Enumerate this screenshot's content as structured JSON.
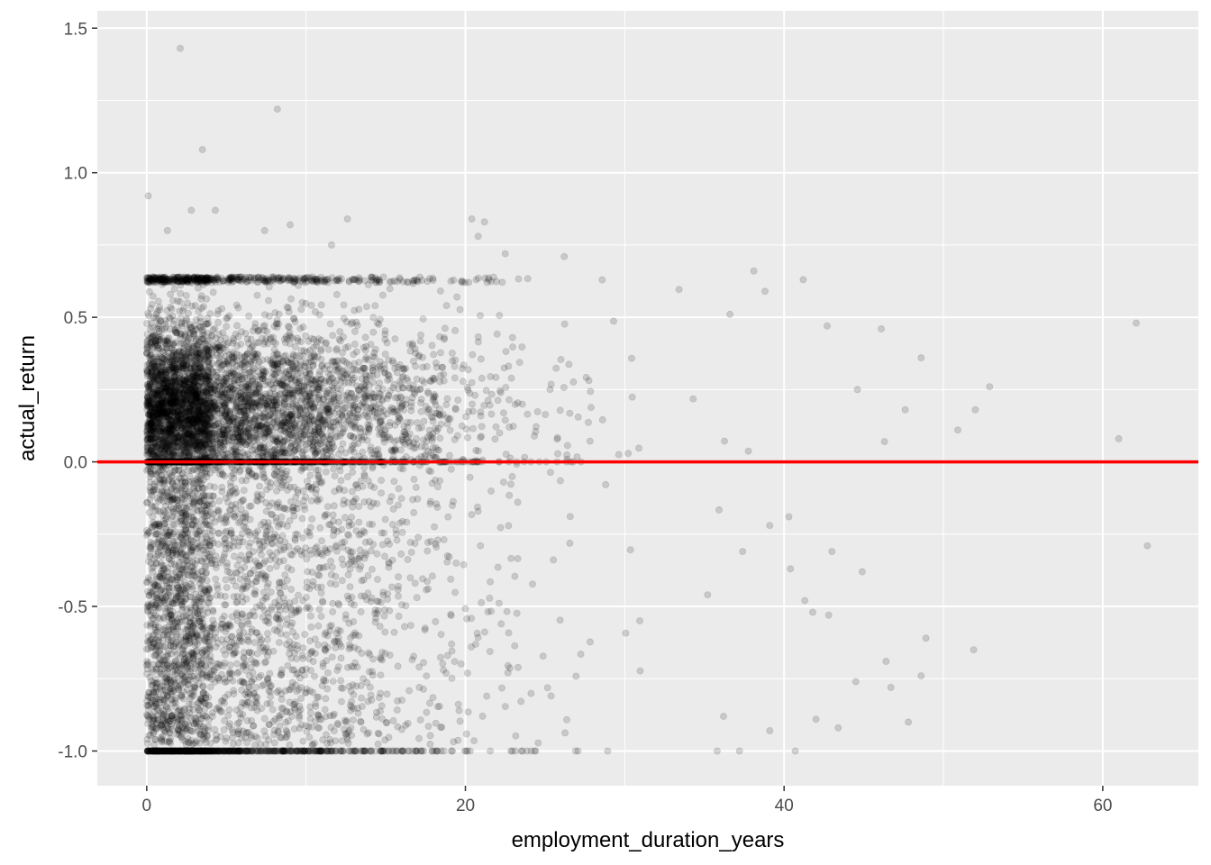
{
  "chart_data": {
    "type": "scatter",
    "title": "",
    "xlabel": "employment_duration_years",
    "ylabel": "actual_return",
    "xlim": [
      -3.1,
      66.0
    ],
    "ylim": [
      -1.12,
      1.56
    ],
    "x_ticks": [
      0,
      20,
      40,
      60
    ],
    "x_tick_labels": [
      "0",
      "20",
      "40",
      "60"
    ],
    "y_ticks": [
      -1.0,
      -0.5,
      0.0,
      0.5,
      1.0,
      1.5
    ],
    "y_tick_labels": [
      "-1.0",
      "-0.5",
      "0.0",
      "0.5",
      "1.0",
      "1.5"
    ],
    "grid": true,
    "background": "#ebebeb",
    "grid_color": "#ffffff",
    "point_color": "#000000",
    "point_alpha": 0.15,
    "hline": {
      "y": 0.0,
      "color": "#ff0000"
    },
    "highlighted_points": [
      {
        "x": 2.1,
        "y": 1.43
      },
      {
        "x": 8.2,
        "y": 1.22
      },
      {
        "x": 3.5,
        "y": 1.08
      },
      {
        "x": 0.1,
        "y": 0.92
      },
      {
        "x": 2.8,
        "y": 0.87
      },
      {
        "x": 4.3,
        "y": 0.87
      },
      {
        "x": 12.6,
        "y": 0.84
      },
      {
        "x": 20.4,
        "y": 0.84
      },
      {
        "x": 21.2,
        "y": 0.83
      },
      {
        "x": 9.0,
        "y": 0.82
      },
      {
        "x": 7.4,
        "y": 0.8
      },
      {
        "x": 1.3,
        "y": 0.8
      },
      {
        "x": 20.8,
        "y": 0.78
      },
      {
        "x": 11.6,
        "y": 0.75
      },
      {
        "x": 22.5,
        "y": 0.72
      },
      {
        "x": 26.2,
        "y": 0.71
      },
      {
        "x": 38.1,
        "y": 0.66
      },
      {
        "x": 41.2,
        "y": 0.63
      },
      {
        "x": 36.6,
        "y": 0.51
      },
      {
        "x": 38.8,
        "y": 0.59
      },
      {
        "x": 42.7,
        "y": 0.47
      },
      {
        "x": 46.1,
        "y": 0.46
      },
      {
        "x": 48.6,
        "y": 0.36
      },
      {
        "x": 52.9,
        "y": 0.26
      },
      {
        "x": 44.6,
        "y": 0.25
      },
      {
        "x": 47.6,
        "y": 0.18
      },
      {
        "x": 52.0,
        "y": 0.18
      },
      {
        "x": 50.9,
        "y": 0.11
      },
      {
        "x": 46.3,
        "y": 0.07
      },
      {
        "x": 61.0,
        "y": 0.08
      },
      {
        "x": 62.1,
        "y": 0.48
      },
      {
        "x": 62.8,
        "y": -0.29
      },
      {
        "x": 40.3,
        "y": -0.19
      },
      {
        "x": 39.1,
        "y": -0.22
      },
      {
        "x": 43.0,
        "y": -0.31
      },
      {
        "x": 44.9,
        "y": -0.38
      },
      {
        "x": 40.4,
        "y": -0.37
      },
      {
        "x": 41.3,
        "y": -0.48
      },
      {
        "x": 42.8,
        "y": -0.53
      },
      {
        "x": 41.8,
        "y": -0.52
      },
      {
        "x": 48.9,
        "y": -0.61
      },
      {
        "x": 51.9,
        "y": -0.65
      },
      {
        "x": 46.4,
        "y": -0.69
      },
      {
        "x": 48.6,
        "y": -0.74
      },
      {
        "x": 46.7,
        "y": -0.78
      },
      {
        "x": 44.5,
        "y": -0.76
      },
      {
        "x": 47.8,
        "y": -0.9
      },
      {
        "x": 43.4,
        "y": -0.92
      },
      {
        "x": 42.0,
        "y": -0.89
      },
      {
        "x": 40.7,
        "y": -1.0
      },
      {
        "x": 37.2,
        "y": -1.0
      },
      {
        "x": 35.8,
        "y": -1.0
      },
      {
        "x": 37.4,
        "y": -0.31
      },
      {
        "x": 35.2,
        "y": -0.46
      },
      {
        "x": 36.2,
        "y": -0.88
      },
      {
        "x": 39.1,
        "y": -0.93
      }
    ],
    "density_note_series": [
      {
        "name": "",
        "description_region": "dense"
      }
    ]
  }
}
